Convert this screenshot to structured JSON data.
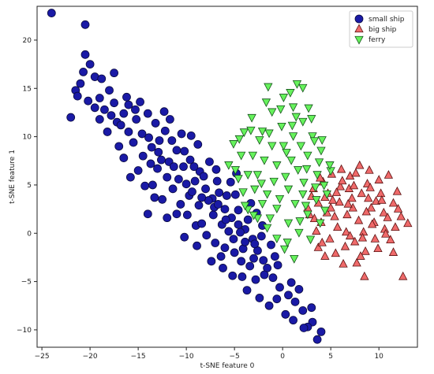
{
  "chart_data": {
    "type": "scatter",
    "xlabel": "t-SNE feature 0",
    "ylabel": "t-SNE feature 1",
    "xlim": [
      -25.5,
      14.0
    ],
    "ylim": [
      -11.8,
      23.5
    ],
    "xticks": [
      -25,
      -20,
      -15,
      -10,
      -5,
      0,
      5,
      10
    ],
    "yticks": [
      -10,
      -5,
      0,
      5,
      10,
      15,
      20
    ],
    "grid": false,
    "legend_position": "top-right",
    "series": [
      {
        "name": "small ship",
        "marker": "circle",
        "color": "#1a1aa6",
        "edge": "#0a0a40",
        "points": [
          [
            -24.0,
            22.8
          ],
          [
            -20.5,
            21.6
          ],
          [
            -20.5,
            18.5
          ],
          [
            -20.0,
            17.5
          ],
          [
            -19.5,
            16.2
          ],
          [
            -20.7,
            16.7
          ],
          [
            -17.5,
            16.6
          ],
          [
            -21.0,
            15.5
          ],
          [
            -21.5,
            14.8
          ],
          [
            -22.0,
            12.0
          ],
          [
            -19.0,
            14.0
          ],
          [
            -18.5,
            12.8
          ],
          [
            -17.5,
            13.5
          ],
          [
            -17.2,
            11.5
          ],
          [
            -16.5,
            12.4
          ],
          [
            -16.0,
            10.5
          ],
          [
            -15.2,
            11.8
          ],
          [
            -14.6,
            10.3
          ],
          [
            -14.0,
            12.4
          ],
          [
            -13.6,
            8.9
          ],
          [
            -12.8,
            9.6
          ],
          [
            -12.2,
            10.6
          ],
          [
            -11.8,
            7.4
          ],
          [
            -11.0,
            8.6
          ],
          [
            -10.3,
            6.9
          ],
          [
            -9.6,
            7.6
          ],
          [
            -9.1,
            5.4
          ],
          [
            -8.6,
            6.4
          ],
          [
            -8.0,
            4.6
          ],
          [
            -7.3,
            3.6
          ],
          [
            -6.6,
            4.2
          ],
          [
            -6.0,
            2.5
          ],
          [
            -5.3,
            1.6
          ],
          [
            -4.6,
            0.9
          ],
          [
            -3.9,
            0.4
          ],
          [
            -3.1,
            -0.6
          ],
          [
            -2.6,
            -1.8
          ],
          [
            -2.0,
            -2.8
          ],
          [
            -1.6,
            -3.6
          ],
          [
            -1.0,
            -4.6
          ],
          [
            -0.3,
            -5.6
          ],
          [
            0.6,
            -6.4
          ],
          [
            1.3,
            -7.1
          ],
          [
            2.1,
            -8.0
          ],
          [
            3.1,
            -9.2
          ],
          [
            3.6,
            -11.0
          ],
          [
            4.0,
            -10.2
          ],
          [
            2.6,
            -9.7
          ],
          [
            -0.6,
            -6.8
          ],
          [
            -16.0,
            13.3
          ],
          [
            -15.5,
            9.4
          ],
          [
            -14.5,
            8.0
          ],
          [
            -13.2,
            11.4
          ],
          [
            -12.6,
            7.6
          ],
          [
            -12.0,
            5.8
          ],
          [
            -11.5,
            9.6
          ],
          [
            -10.8,
            5.6
          ],
          [
            -10.2,
            8.5
          ],
          [
            -9.7,
            3.9
          ],
          [
            -9.2,
            6.9
          ],
          [
            -8.7,
            2.9
          ],
          [
            -8.2,
            5.9
          ],
          [
            -7.7,
            3.4
          ],
          [
            -7.2,
            1.9
          ],
          [
            -6.8,
            5.4
          ],
          [
            -6.3,
            0.9
          ],
          [
            -5.8,
            3.9
          ],
          [
            -5.1,
            -0.6
          ],
          [
            -4.6,
            2.4
          ],
          [
            -4.1,
            -1.6
          ],
          [
            -3.6,
            1.4
          ],
          [
            -3.0,
            -2.6
          ],
          [
            -2.2,
            -0.3
          ],
          [
            -14.0,
            2.0
          ],
          [
            -11.0,
            2.0
          ],
          [
            -9.0,
            0.8
          ],
          [
            -7.0,
            -1.0
          ],
          [
            -5.0,
            -2.0
          ],
          [
            -4.2,
            -4.5
          ],
          [
            -2.8,
            -4.8
          ],
          [
            -6.0,
            -1.5
          ],
          [
            -16.5,
            7.8
          ],
          [
            -15.0,
            6.5
          ],
          [
            -13.5,
            5.0
          ],
          [
            -12.5,
            3.5
          ],
          [
            -18.2,
            10.5
          ],
          [
            -17.0,
            9.0
          ],
          [
            -19.5,
            13.0
          ],
          [
            -18.0,
            14.8
          ],
          [
            -16.8,
            11.2
          ],
          [
            -15.3,
            12.8
          ],
          [
            -13.9,
            9.9
          ],
          [
            -13.0,
            6.7
          ],
          [
            -11.4,
            4.6
          ],
          [
            -10.6,
            3.0
          ],
          [
            -9.9,
            1.9
          ],
          [
            -8.4,
            1.0
          ],
          [
            -7.9,
            -0.2
          ],
          [
            -6.4,
            -2.4
          ],
          [
            -5.6,
            0.2
          ],
          [
            -4.3,
            -2.9
          ],
          [
            -3.4,
            -3.4
          ],
          [
            -1.2,
            -1.2
          ],
          [
            -0.8,
            -2.4
          ],
          [
            -2.1,
            0.8
          ],
          [
            -12.3,
            12.6
          ],
          [
            -10.5,
            10.3
          ],
          [
            -8.8,
            9.2
          ],
          [
            -7.6,
            7.4
          ],
          [
            -6.9,
            6.6
          ],
          [
            -5.4,
            5.3
          ],
          [
            -4.9,
            4.0
          ],
          [
            -17.8,
            12.2
          ],
          [
            -16.2,
            14.1
          ],
          [
            -14.8,
            13.6
          ],
          [
            -11.7,
            11.8
          ],
          [
            -9.5,
            10.1
          ],
          [
            -13.3,
            3.7
          ],
          [
            -12.0,
            1.6
          ],
          [
            -10.2,
            -0.4
          ],
          [
            -8.9,
            -1.3
          ],
          [
            -7.4,
            -2.9
          ],
          [
            -6.2,
            -3.6
          ],
          [
            -5.2,
            -4.4
          ],
          [
            -3.7,
            -5.9
          ],
          [
            -2.4,
            -6.7
          ],
          [
            -1.4,
            -7.5
          ],
          [
            0.3,
            -8.4
          ],
          [
            1.1,
            -9.0
          ],
          [
            2.2,
            -9.8
          ],
          [
            -15.8,
            5.8
          ],
          [
            -14.3,
            4.9
          ],
          [
            -13.7,
            7.2
          ],
          [
            -12.9,
            8.4
          ],
          [
            -11.3,
            6.9
          ],
          [
            -10.0,
            5.1
          ],
          [
            -8.4,
            3.7
          ],
          [
            -7.1,
            2.7
          ],
          [
            -5.9,
            1.4
          ],
          [
            -4.4,
            0.1
          ],
          [
            -2.9,
            -1.1
          ],
          [
            -19.0,
            11.8
          ],
          [
            -20.2,
            13.7
          ],
          [
            -18.8,
            16.0
          ],
          [
            -21.3,
            14.2
          ],
          [
            -1.9,
            -4.3
          ],
          [
            -0.5,
            -3.3
          ],
          [
            0.9,
            -5.1
          ],
          [
            1.7,
            -5.8
          ],
          [
            3.0,
            -7.7
          ],
          [
            -4.8,
            6.2
          ],
          [
            -3.3,
            3.1
          ],
          [
            -2.7,
            2.1
          ],
          [
            -3.9,
            -0.9
          ],
          [
            -6.7,
            3.0
          ],
          [
            -9.4,
            4.3
          ]
        ]
      },
      {
        "name": "big ship",
        "marker": "triangle-up",
        "color": "#ef6a6a",
        "edge": "#5a1010",
        "points": [
          [
            12.5,
            -4.5
          ],
          [
            8.5,
            -4.5
          ],
          [
            11.5,
            -2.0
          ],
          [
            13.0,
            1.0
          ],
          [
            12.0,
            2.5
          ],
          [
            11.0,
            6.0
          ],
          [
            10.0,
            5.5
          ],
          [
            9.0,
            6.5
          ],
          [
            8.0,
            7.0
          ],
          [
            7.0,
            5.9
          ],
          [
            6.0,
            4.8
          ],
          [
            5.2,
            3.4
          ],
          [
            4.6,
            2.1
          ],
          [
            4.0,
            1.1
          ],
          [
            3.5,
            0.2
          ],
          [
            3.7,
            -1.5
          ],
          [
            4.4,
            -2.4
          ],
          [
            5.5,
            -2.1
          ],
          [
            6.5,
            -1.4
          ],
          [
            7.5,
            -0.9
          ],
          [
            8.4,
            0.1
          ],
          [
            9.5,
            1.1
          ],
          [
            10.5,
            2.1
          ],
          [
            11.5,
            3.1
          ],
          [
            10.6,
            0.4
          ],
          [
            9.6,
            -0.6
          ],
          [
            8.6,
            -1.9
          ],
          [
            7.7,
            -3.1
          ],
          [
            6.7,
            1.9
          ],
          [
            7.2,
            3.6
          ],
          [
            8.2,
            4.1
          ],
          [
            9.2,
            2.6
          ],
          [
            5.7,
            0.6
          ],
          [
            4.7,
            4.1
          ],
          [
            3.7,
            3.1
          ],
          [
            2.8,
            1.9
          ],
          [
            3.2,
            4.6
          ],
          [
            4.2,
            5.3
          ],
          [
            5.1,
            6.1
          ],
          [
            6.1,
            6.6
          ],
          [
            8.8,
            5.1
          ],
          [
            10.2,
            4.1
          ],
          [
            11.7,
            0.6
          ],
          [
            6.3,
            -3.2
          ],
          [
            7.3,
            2.6
          ],
          [
            5.4,
            1.7
          ],
          [
            9.9,
            -1.6
          ],
          [
            8.9,
            3.6
          ],
          [
            6.9,
            4.6
          ],
          [
            4.9,
            -0.6
          ],
          [
            10.9,
            1.6
          ],
          [
            2.6,
            2.6
          ],
          [
            7.9,
            1.3
          ],
          [
            6.6,
            0.1
          ],
          [
            5.9,
            3.2
          ],
          [
            9.3,
            0.9
          ],
          [
            8.1,
            -2.4
          ],
          [
            4.4,
            3.7
          ],
          [
            3.9,
            5.7
          ],
          [
            11.2,
            -0.7
          ],
          [
            12.3,
            1.7
          ],
          [
            6.2,
            5.4
          ],
          [
            7.6,
            6.2
          ],
          [
            9.7,
            3.3
          ],
          [
            3.3,
            1.5
          ],
          [
            5.0,
            2.6
          ],
          [
            7.0,
            -0.3
          ],
          [
            8.7,
            2.2
          ],
          [
            10.3,
            3.4
          ],
          [
            4.1,
            -1.0
          ],
          [
            6.8,
            3.0
          ],
          [
            5.6,
            4.2
          ],
          [
            3.0,
            3.8
          ],
          [
            9.1,
            4.7
          ],
          [
            10.7,
            -0.1
          ],
          [
            11.9,
            4.3
          ],
          [
            7.4,
            4.9
          ],
          [
            8.3,
            -0.5
          ]
        ]
      },
      {
        "name": "ferry",
        "marker": "triangle-down",
        "color": "#66f25c",
        "edge": "#14521a",
        "points": [
          [
            1.5,
            15.5
          ],
          [
            2.1,
            15.1
          ],
          [
            -1.5,
            15.2
          ],
          [
            -3.2,
            12.0
          ],
          [
            -4.0,
            10.5
          ],
          [
            -5.1,
            9.3
          ],
          [
            -5.6,
            7.1
          ],
          [
            -4.6,
            5.7
          ],
          [
            -4.1,
            4.3
          ],
          [
            -3.6,
            2.5
          ],
          [
            -2.6,
            1.6
          ],
          [
            -1.6,
            0.6
          ],
          [
            -0.6,
            -0.5
          ],
          [
            0.2,
            -1.6
          ],
          [
            1.2,
            -2.6
          ],
          [
            1.7,
            0.1
          ],
          [
            2.6,
            2.0
          ],
          [
            3.5,
            3.5
          ],
          [
            4.3,
            5.0
          ],
          [
            5.0,
            6.5
          ],
          [
            4.0,
            8.6
          ],
          [
            3.1,
            10.1
          ],
          [
            2.1,
            11.6
          ],
          [
            1.1,
            13.1
          ],
          [
            0.1,
            14.1
          ],
          [
            -1.1,
            12.6
          ],
          [
            -2.1,
            10.6
          ],
          [
            -3.1,
            8.1
          ],
          [
            -2.6,
            6.1
          ],
          [
            -1.6,
            4.1
          ],
          [
            -0.6,
            2.6
          ],
          [
            0.6,
            4.6
          ],
          [
            1.6,
            6.6
          ],
          [
            2.6,
            8.1
          ],
          [
            3.6,
            6.1
          ],
          [
            4.6,
            4.1
          ],
          [
            0.1,
            9.1
          ],
          [
            -0.6,
            7.1
          ],
          [
            1.1,
            10.1
          ],
          [
            -1.1,
            9.1
          ],
          [
            2.1,
            4.1
          ],
          [
            0.6,
            1.1
          ],
          [
            -2.1,
            3.1
          ],
          [
            -3.6,
            6.1
          ],
          [
            -4.3,
            8.1
          ],
          [
            3.9,
            1.1
          ],
          [
            2.9,
            -0.6
          ],
          [
            1.4,
            12.1
          ],
          [
            -0.1,
            11.1
          ],
          [
            0.9,
            7.6
          ],
          [
            -1.9,
            7.6
          ],
          [
            3.3,
            9.6
          ],
          [
            4.9,
            7.1
          ],
          [
            -2.9,
            4.6
          ],
          [
            -1.3,
            1.6
          ],
          [
            2.4,
            2.9
          ],
          [
            0.3,
            5.9
          ],
          [
            1.9,
            9.1
          ],
          [
            -0.9,
            5.4
          ],
          [
            3.0,
            11.9
          ],
          [
            -3.9,
            2.9
          ],
          [
            4.4,
            2.4
          ],
          [
            -1.7,
            13.6
          ],
          [
            0.8,
            14.6
          ],
          [
            2.7,
            13.0
          ],
          [
            -2.4,
            9.7
          ],
          [
            -4.9,
            6.6
          ],
          [
            3.8,
            7.4
          ],
          [
            1.3,
            3.1
          ],
          [
            -0.3,
            3.6
          ],
          [
            2.2,
            5.3
          ],
          [
            0.5,
            -0.9
          ],
          [
            -3.3,
            10.7
          ],
          [
            1.8,
            1.3
          ],
          [
            -0.2,
            12.9
          ],
          [
            4.1,
            9.7
          ],
          [
            -1.4,
            10.4
          ],
          [
            2.5,
            6.7
          ],
          [
            -2.2,
            5.2
          ],
          [
            0.4,
            8.4
          ],
          [
            3.4,
            4.8
          ],
          [
            -3.0,
            1.9
          ],
          [
            1.0,
            11.2
          ],
          [
            -4.5,
            9.8
          ]
        ]
      }
    ]
  }
}
